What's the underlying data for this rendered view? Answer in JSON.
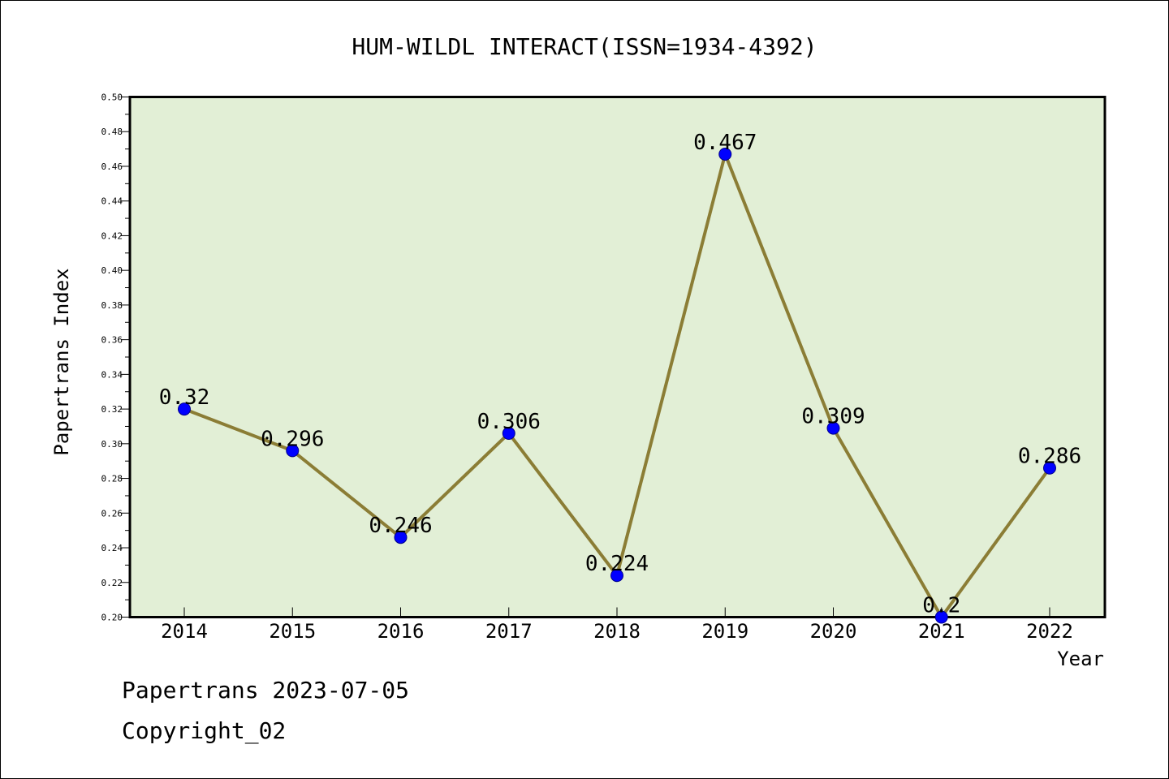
{
  "chart_data": {
    "type": "line",
    "title": "HUM-WILDL INTERACT(ISSN=1934-4392)",
    "xlabel": "Year",
    "ylabel": "Papertrans Index",
    "categories": [
      "2014",
      "2015",
      "2016",
      "2017",
      "2018",
      "2019",
      "2020",
      "2021",
      "2022"
    ],
    "values": [
      0.32,
      0.296,
      0.246,
      0.306,
      0.224,
      0.467,
      0.309,
      0.2,
      0.286
    ],
    "data_labels": [
      "0.32",
      "0.296",
      "0.246",
      "0.306",
      "0.224",
      "0.467",
      "0.309",
      "0.2",
      "0.286"
    ],
    "ylim": [
      0.2,
      0.5
    ],
    "yticks": [
      "0.20",
      "0.22",
      "0.24",
      "0.26",
      "0.28",
      "0.30",
      "0.32",
      "0.34",
      "0.36",
      "0.38",
      "0.40",
      "0.42",
      "0.44",
      "0.46",
      "0.48",
      "0.50"
    ],
    "grid": false,
    "colors": {
      "plot_background": "#e2efd6",
      "line": "#8b7d35",
      "marker": "#0000ff",
      "marker_edge": "#00008b"
    }
  },
  "footer": {
    "line1": "Papertrans 2023-07-05",
    "line2": "Copyright_02"
  }
}
